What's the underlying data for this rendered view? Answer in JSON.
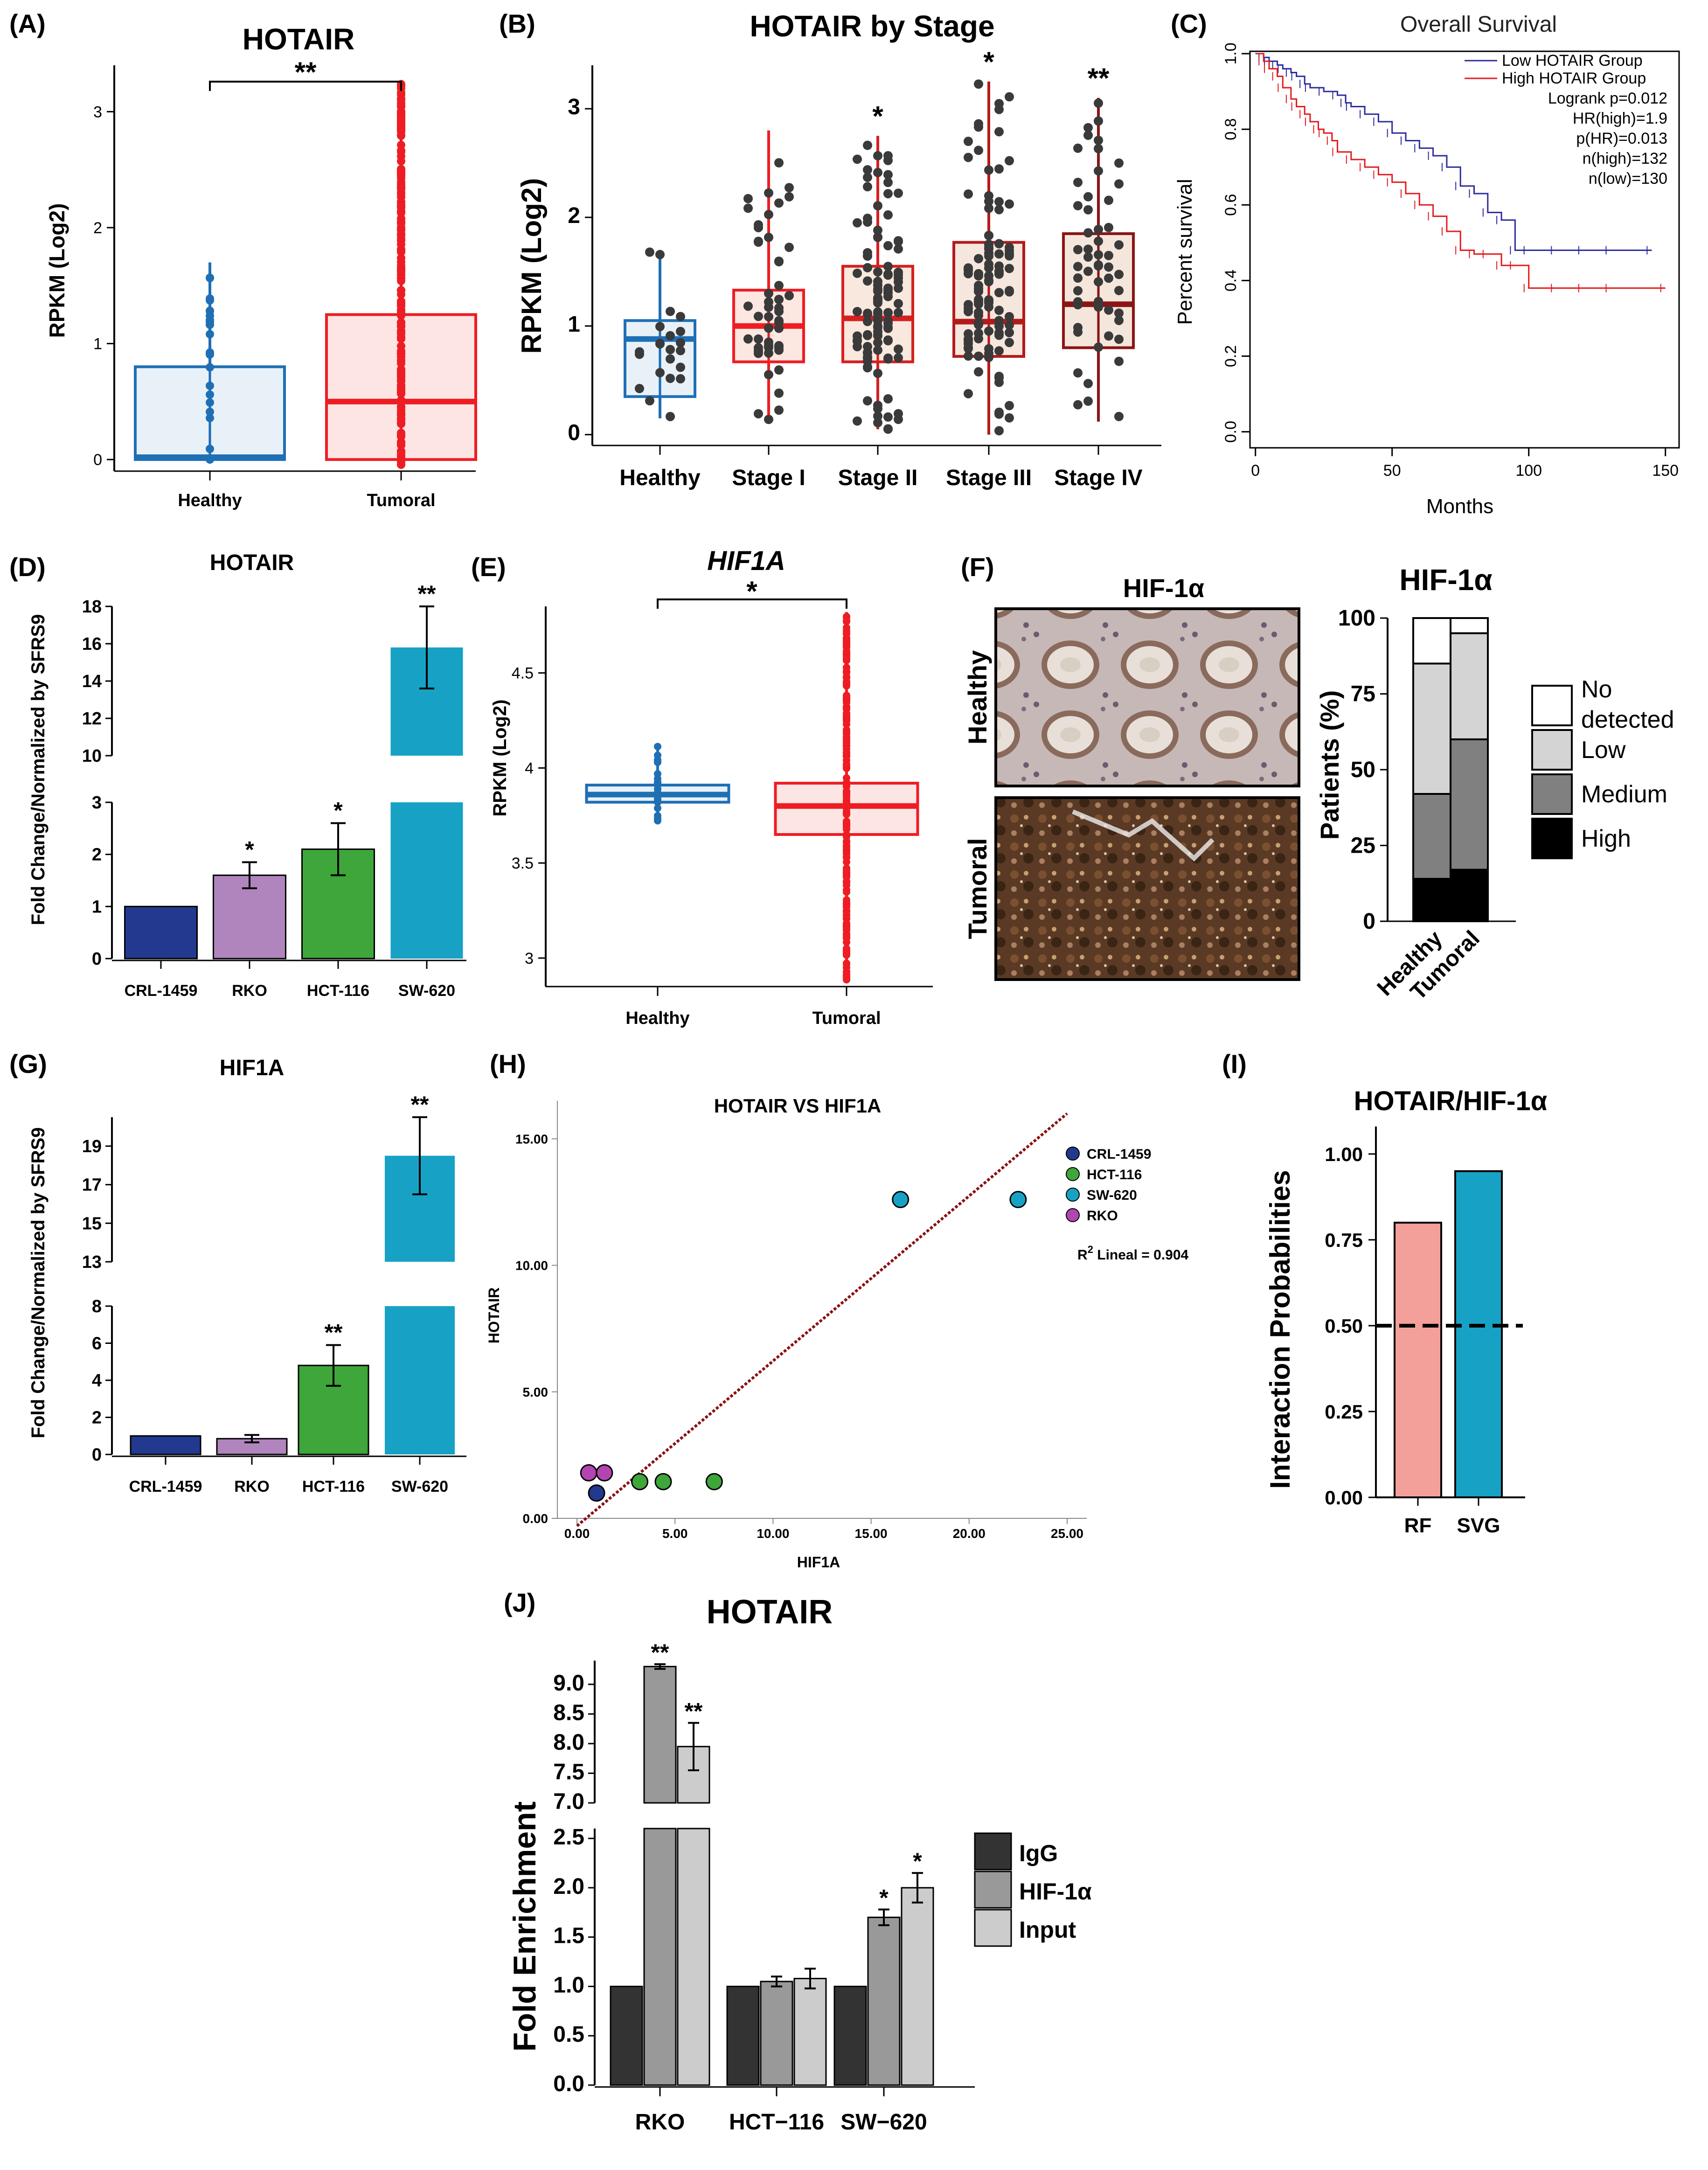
{
  "figure": {
    "panel_labels": [
      "(A)",
      "(B)",
      "(C)",
      "(D)",
      "(E)",
      "(F)",
      "(G)",
      "(H)",
      "(I)",
      "(J)"
    ]
  },
  "chart_data": [
    {
      "id": "A",
      "type": "box",
      "title": "HOTAIR",
      "ylabel": "RPKM (Log2)",
      "ylim": [
        -0.1,
        3.4
      ],
      "yticks": [
        0,
        1,
        2,
        3
      ],
      "categories": [
        "Healthy",
        "Tumoral"
      ],
      "boxes": [
        {
          "name": "Healthy",
          "q1": 0.0,
          "median": 0.02,
          "q3": 0.8,
          "whisker_low": 0.0,
          "whisker_high": 1.7,
          "color": "#1f6fb5",
          "fill": "#e4eef7"
        },
        {
          "name": "Tumoral",
          "q1": 0.0,
          "median": 0.5,
          "q3": 1.25,
          "whisker_low": -0.05,
          "whisker_high": 3.25,
          "color": "#ee1d23",
          "fill": "#fde0df"
        }
      ],
      "significance": "**"
    },
    {
      "id": "B",
      "type": "box",
      "title": "HOTAIR by Stage",
      "ylabel": "RPKM (Log2)",
      "ylim": [
        -0.1,
        3.4
      ],
      "yticks": [
        0,
        1,
        2,
        3
      ],
      "categories": [
        "Healthy",
        "Stage I",
        "Stage II",
        "Stage III",
        "Stage IV"
      ],
      "boxes": [
        {
          "name": "Healthy",
          "q1": 0.35,
          "median": 0.88,
          "q3": 1.05,
          "whisker_low": 0.15,
          "whisker_high": 1.7,
          "color": "#1f6fb5",
          "fill": "#e4eef7"
        },
        {
          "name": "Stage I",
          "q1": 0.67,
          "median": 1.0,
          "q3": 1.33,
          "whisker_low": 0.12,
          "whisker_high": 2.8,
          "color": "#ee1d23",
          "fill": "#fbe3dc"
        },
        {
          "name": "Stage II",
          "q1": 0.67,
          "median": 1.07,
          "q3": 1.55,
          "whisker_low": 0.05,
          "whisker_high": 2.75,
          "color": "#d62020",
          "fill": "#f8e4d8"
        },
        {
          "name": "Stage III",
          "q1": 0.72,
          "median": 1.04,
          "q3": 1.77,
          "whisker_low": 0.0,
          "whisker_high": 3.25,
          "color": "#b31b1b",
          "fill": "#f5e3d8"
        },
        {
          "name": "Stage IV",
          "q1": 0.8,
          "median": 1.2,
          "q3": 1.85,
          "whisker_low": 0.12,
          "whisker_high": 3.1,
          "color": "#8b1515",
          "fill": "#f3e2d5"
        }
      ],
      "significance": [
        "",
        "",
        "*",
        "*",
        "**"
      ]
    },
    {
      "id": "C",
      "type": "line",
      "title": "Overall Survival",
      "xlabel": "Months",
      "ylabel": "Percent survival",
      "xlim": [
        0,
        155
      ],
      "ylim": [
        0,
        1.0
      ],
      "xticks": [
        0,
        50,
        100,
        150
      ],
      "yticks": [
        0.0,
        0.2,
        0.4,
        0.6,
        0.8,
        1.0
      ],
      "series": [
        {
          "name": "Low HOTAIR Group",
          "color": "#2b2b9f",
          "x": [
            0,
            3,
            5,
            8,
            10,
            13,
            15,
            18,
            20,
            25,
            30,
            33,
            35,
            40,
            45,
            50,
            55,
            60,
            65,
            70,
            75,
            80,
            85,
            90,
            95,
            100,
            110,
            120,
            130,
            145
          ],
          "y": [
            1.0,
            0.99,
            0.98,
            0.97,
            0.96,
            0.95,
            0.94,
            0.92,
            0.91,
            0.9,
            0.89,
            0.87,
            0.86,
            0.84,
            0.82,
            0.79,
            0.77,
            0.75,
            0.73,
            0.7,
            0.65,
            0.63,
            0.58,
            0.56,
            0.48,
            0.48,
            0.48,
            0.48,
            0.48,
            0.48
          ]
        },
        {
          "name": "High HOTAIR Group",
          "color": "#e41a1c",
          "x": [
            0,
            3,
            5,
            8,
            10,
            13,
            15,
            18,
            20,
            23,
            25,
            28,
            30,
            35,
            40,
            45,
            50,
            55,
            60,
            65,
            70,
            75,
            80,
            85,
            90,
            95,
            100,
            110,
            120,
            130,
            150
          ],
          "y": [
            1.0,
            0.98,
            0.96,
            0.94,
            0.91,
            0.88,
            0.86,
            0.84,
            0.82,
            0.8,
            0.79,
            0.77,
            0.74,
            0.72,
            0.7,
            0.68,
            0.66,
            0.63,
            0.6,
            0.57,
            0.53,
            0.48,
            0.47,
            0.47,
            0.44,
            0.44,
            0.38,
            0.38,
            0.38,
            0.38,
            0.38
          ]
        }
      ],
      "legend": [
        "Low HOTAIR Group",
        "High HOTAIR Group"
      ],
      "stats": [
        "Logrank p=0.012",
        "HR(high)=1.9",
        "p(HR)=0.013",
        "n(high)=132",
        "n(low)=130"
      ]
    },
    {
      "id": "D",
      "type": "bar",
      "title": "HOTAIR",
      "ylabel": "Fold  Change/Normalized by SFRS9",
      "categories": [
        "CRL-1459",
        "RKO",
        "HCT-116",
        "SW-620"
      ],
      "values": [
        1.0,
        1.6,
        2.1,
        15.8
      ],
      "errors": [
        0.0,
        0.25,
        0.5,
        2.2
      ],
      "colors": [
        "#22398f",
        "#b085bd",
        "#3ea63a",
        "#17a2c5"
      ],
      "significance": [
        "",
        "*",
        "*",
        "**"
      ],
      "broken_axis": {
        "lower": [
          0,
          3
        ],
        "upper": [
          10,
          18
        ]
      },
      "yticks_lower": [
        0,
        1,
        2,
        3
      ],
      "yticks_upper": [
        10,
        12,
        14,
        16,
        18
      ]
    },
    {
      "id": "E",
      "type": "box",
      "title": "HIF1A",
      "ylabel": "RPKM (Log2)",
      "ylim": [
        2.85,
        4.85
      ],
      "yticks": [
        3.0,
        3.5,
        4.0,
        4.5
      ],
      "categories": [
        "Healthy",
        "Tumoral"
      ],
      "boxes": [
        {
          "name": "Healthy",
          "q1": 3.82,
          "median": 3.86,
          "q3": 3.91,
          "whisker_low": 3.72,
          "whisker_high": 4.13,
          "color": "#1f6fb5",
          "fill": "#e4eef7"
        },
        {
          "name": "Tumoral",
          "q1": 3.65,
          "median": 3.8,
          "q3": 3.92,
          "whisker_low": 2.87,
          "whisker_high": 4.82,
          "color": "#ee1d23",
          "fill": "#fde0df"
        }
      ],
      "significance": "*"
    },
    {
      "id": "F",
      "type": "bar",
      "title": "HIF-1α",
      "image_title": "HIF-1α",
      "image_labels": [
        "Healthy",
        "Tumoral"
      ],
      "ylabel": "Patients (%)",
      "ylim": [
        0,
        100
      ],
      "yticks": [
        0,
        25,
        50,
        75,
        100
      ],
      "categories": [
        "Healthy",
        "Tumoral"
      ],
      "series": [
        {
          "name": "High",
          "values": [
            14,
            17
          ],
          "color": "#000000"
        },
        {
          "name": "Medium",
          "values": [
            28,
            43
          ],
          "color": "#808080"
        },
        {
          "name": "Low",
          "values": [
            43,
            35
          ],
          "color": "#d4d4d4"
        },
        {
          "name": "No detected",
          "values": [
            15,
            5
          ],
          "color": "#ffffff"
        }
      ],
      "legend": [
        "No detected",
        "Low",
        "Medium",
        "High"
      ]
    },
    {
      "id": "G",
      "type": "bar",
      "title": "HIF1A",
      "ylabel": "Fold  Change/Normalized by SFRS9",
      "categories": [
        "CRL-1459",
        "RKO",
        "HCT-116",
        "SW-620"
      ],
      "values": [
        1.0,
        0.85,
        4.8,
        18.5
      ],
      "errors": [
        0.0,
        0.2,
        1.1,
        2.0
      ],
      "colors": [
        "#22398f",
        "#b085bd",
        "#3ea63a",
        "#17a2c5"
      ],
      "significance": [
        "",
        "",
        "**",
        "**"
      ],
      "broken_axis": {
        "lower": [
          0,
          8
        ],
        "upper": [
          13,
          20.5
        ]
      },
      "yticks_lower": [
        0,
        2,
        4,
        6,
        8
      ],
      "yticks_upper": [
        13,
        15,
        17,
        19
      ]
    },
    {
      "id": "H",
      "type": "scatter",
      "title": "HOTAIR VS HIF1A",
      "xlabel": "HIF1A",
      "ylabel": "HOTAIR",
      "xlim": [
        -1,
        26
      ],
      "ylim": [
        0,
        16.5
      ],
      "xticks": [
        0,
        5,
        10,
        15,
        20,
        25
      ],
      "yticks": [
        0,
        5,
        10,
        15
      ],
      "xtick_labels": [
        "0.00",
        "5.00",
        "10.00",
        "15.00",
        "20.00",
        "25.00"
      ],
      "ytick_labels": [
        "0.00",
        "5.00",
        "10.00",
        "15.00"
      ],
      "series": [
        {
          "name": "CRL-1459",
          "color": "#22398f",
          "points": [
            [
              1.0,
              1.0
            ]
          ]
        },
        {
          "name": "HCT-116",
          "color": "#3ea63a",
          "points": [
            [
              3.2,
              1.45
            ],
            [
              4.4,
              1.45
            ],
            [
              7.0,
              1.45
            ]
          ]
        },
        {
          "name": "SW-620",
          "color": "#17a2c5",
          "points": [
            [
              16.5,
              12.6
            ],
            [
              22.5,
              12.6
            ]
          ]
        },
        {
          "name": "RKO",
          "color": "#b245b0",
          "points": [
            [
              0.6,
              1.8
            ],
            [
              1.4,
              1.8
            ]
          ]
        }
      ],
      "fit_line": {
        "x": [
          0,
          25
        ],
        "y": [
          -0.3,
          16.0
        ],
        "color": "#8b1010"
      },
      "r2_label": "R",
      "r2_sup": "2",
      "r2_text": " Lineal = 0.904"
    },
    {
      "id": "I",
      "type": "bar",
      "title": "HOTAIR/HIF-1α",
      "ylabel": "Interaction Probabilities",
      "ylim": [
        0,
        1.08
      ],
      "yticks": [
        0.0,
        0.25,
        0.5,
        0.75,
        1.0
      ],
      "ytick_labels": [
        "0.00",
        "0.25",
        "0.50",
        "0.75",
        "1.00"
      ],
      "categories": [
        "RF",
        "SVG"
      ],
      "values": [
        0.8,
        0.95
      ],
      "colors": [
        "#f4a09a",
        "#17a2c5"
      ],
      "threshold": 0.5
    },
    {
      "id": "J",
      "type": "bar",
      "title": "HOTAIR",
      "ylabel": "Fold  Enrichment",
      "categories": [
        "RKO",
        "HCT−116",
        "SW−620"
      ],
      "series": [
        {
          "name": "IgG",
          "values": [
            1.0,
            1.0,
            1.0
          ],
          "errors": [
            0,
            0,
            0
          ],
          "color": "#333333"
        },
        {
          "name": "HIF-1α",
          "values": [
            9.3,
            1.05,
            1.7
          ],
          "errors": [
            0.04,
            0.05,
            0.08
          ],
          "color": "#999999"
        },
        {
          "name": "Input",
          "values": [
            7.95,
            1.08,
            2.0
          ],
          "errors": [
            0.4,
            0.1,
            0.15
          ],
          "color": "#cccccc"
        }
      ],
      "significance": [
        [
          "",
          "**",
          "**"
        ],
        [
          "",
          "",
          ""
        ],
        [
          "",
          "*",
          "*"
        ]
      ],
      "broken_axis": {
        "lower": [
          0,
          2.6
        ],
        "upper": [
          7.0,
          9.4
        ]
      },
      "yticks_lower": [
        0.0,
        0.5,
        1.0,
        1.5,
        2.0,
        2.5
      ],
      "yticks_upper": [
        7.0,
        7.5,
        8.0,
        8.5,
        9.0
      ],
      "legend": [
        "IgG",
        "HIF-1α",
        "Input"
      ]
    }
  ]
}
